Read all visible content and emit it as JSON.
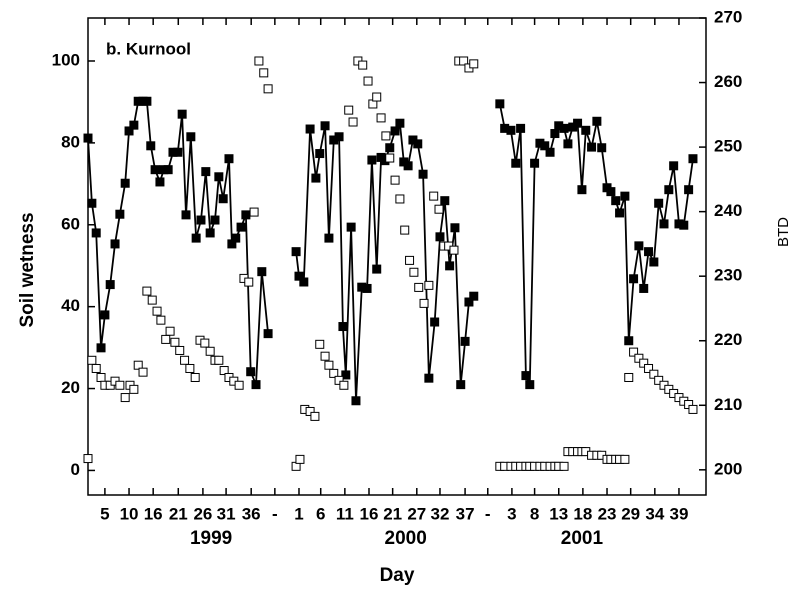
{
  "chart_data": {
    "type": "scatter",
    "annotation": "b. Kurnool",
    "xlabel": "Day",
    "ylabel": "Soil wetness",
    "y2label": "BTD",
    "xlim": [
      0,
      128
    ],
    "ylim": [
      -6,
      110.5
    ],
    "y2lim": [
      196.1,
      270
    ],
    "yticks": [
      0,
      20,
      40,
      60,
      80,
      100
    ],
    "y2ticks": [
      200,
      210,
      220,
      230,
      240,
      250,
      260,
      270
    ],
    "xticks": [
      {
        "value": 3.5,
        "label": "5"
      },
      {
        "value": 8.5,
        "label": "10"
      },
      {
        "value": 13.5,
        "label": "16"
      },
      {
        "value": 18.7,
        "label": "21"
      },
      {
        "value": 23.8,
        "label": "26"
      },
      {
        "value": 28.6,
        "label": "31"
      },
      {
        "value": 33.8,
        "label": "36"
      },
      {
        "value": 38.7,
        "label": "-"
      },
      {
        "value": 43.7,
        "label": "1"
      },
      {
        "value": 48.2,
        "label": "6"
      },
      {
        "value": 53.2,
        "label": "11"
      },
      {
        "value": 58.2,
        "label": "16"
      },
      {
        "value": 63.1,
        "label": "21"
      },
      {
        "value": 68.1,
        "label": "27"
      },
      {
        "value": 72.9,
        "label": "32"
      },
      {
        "value": 78.1,
        "label": "37"
      },
      {
        "value": 82.8,
        "label": "-"
      },
      {
        "value": 87.8,
        "label": "3"
      },
      {
        "value": 92.5,
        "label": "8"
      },
      {
        "value": 97.5,
        "label": "13"
      },
      {
        "value": 102.5,
        "label": "18"
      },
      {
        "value": 107.5,
        "label": "23"
      },
      {
        "value": 112.4,
        "label": "29"
      },
      {
        "value": 117.4,
        "label": "34"
      },
      {
        "value": 122.4,
        "label": "39"
      }
    ],
    "groups": [
      {
        "label": "1999",
        "x": 25.5
      },
      {
        "label": "2000",
        "x": 65.8
      },
      {
        "label": "2001",
        "x": 102.3
      }
    ],
    "series": [
      {
        "axis": "y2",
        "marker": "filled",
        "line": true,
        "color": "#000000",
        "x": [
          0,
          0.8,
          1.7,
          2.7,
          3.5,
          4.6,
          5.6,
          6.6,
          7.7,
          8.5,
          9.5,
          10.4,
          11.4,
          12.2,
          13,
          13.9,
          14.9,
          15.7,
          16.6,
          17.6,
          18.6,
          19.5,
          20.3,
          21.3,
          22.4,
          23.4,
          24.4,
          25.3,
          26.3,
          27.1,
          28,
          29.2,
          29.8,
          30.6,
          31.7,
          32.7,
          33.7,
          34.8,
          36,
          37.3,
          null,
          43.1,
          43.7,
          44.7,
          46,
          47.2,
          48,
          49.1,
          49.9,
          50.9,
          52,
          52.8,
          53.4,
          54.5,
          55.5,
          56.7,
          57.8,
          58.8,
          59.8,
          60.7,
          61.5,
          62.5,
          63.6,
          64.6,
          65.4,
          66.3,
          67.3,
          68.3,
          69.4,
          70.6,
          71.8,
          72.9,
          73.9,
          74.9,
          76,
          77.2,
          78.1,
          78.9,
          79.9,
          null,
          85.3,
          86.3,
          87.6,
          88.6,
          89.6,
          90.7,
          91.5,
          92.5,
          93.6,
          94.6,
          95.7,
          96.7,
          97.5,
          98.6,
          99.4,
          100.4,
          101.4,
          102.3,
          103.1,
          104.3,
          105.4,
          106.4,
          107.5,
          108.3,
          109.3,
          110.1,
          111.2,
          112,
          113,
          114.1,
          115.1,
          116.1,
          117.2,
          118.2,
          119.3,
          120.3,
          121.3,
          122.4,
          123.4,
          124.4,
          125.3
        ],
        "values": [
          251.4,
          241.3,
          236.7,
          218.9,
          224,
          228.7,
          235,
          239.6,
          244.4,
          252.5,
          253.4,
          257.1,
          257.1,
          257.1,
          250.2,
          246.5,
          244.6,
          246.5,
          246.5,
          249.2,
          249.2,
          255.1,
          239.5,
          251.6,
          235.9,
          238.7,
          246.2,
          236.7,
          238.7,
          245.4,
          242,
          248.2,
          235,
          235.9,
          237.6,
          239.5,
          215.2,
          213.2,
          230.7,
          221.1,
          null,
          233.8,
          230,
          229.1,
          252.8,
          245.2,
          249,
          253.3,
          235.9,
          251.1,
          251.6,
          222.2,
          214.7,
          237.6,
          210.7,
          228.3,
          228.1,
          248,
          231.1,
          248.4,
          247.9,
          249.9,
          252.5,
          253.7,
          247.7,
          247.1,
          251.1,
          250.5,
          245.8,
          214.2,
          222.9,
          236.1,
          241.7,
          231.6,
          237.5,
          213.2,
          219.9,
          226,
          226.9,
          null,
          256.7,
          252.9,
          252.6,
          247.5,
          252.9,
          214.6,
          213.2,
          247.5,
          250.6,
          250.2,
          249.2,
          252.1,
          253.3,
          252.9,
          250.5,
          253.1,
          253.7,
          243.4,
          252.6,
          250,
          254,
          249.9,
          243.7,
          243.1,
          241.7,
          239.8,
          242.4,
          220,
          229.6,
          234.7,
          228.1,
          233.8,
          232.2,
          241.3,
          238.1,
          243.4,
          247.1,
          238.1,
          237.9,
          243.4,
          248.2
        ]
      },
      {
        "axis": "y",
        "marker": "open",
        "line": false,
        "color": "#000000",
        "x": [
          0,
          0.8,
          1.7,
          2.7,
          3.5,
          4.6,
          5.6,
          6.6,
          7.7,
          8.7,
          9.5,
          10.4,
          11.4,
          12.2,
          13.3,
          14.3,
          15.1,
          16.1,
          17,
          18,
          19,
          20,
          21.1,
          22.2,
          23.2,
          24.2,
          25.3,
          26.3,
          27.1,
          28.2,
          29.2,
          30.2,
          31.3,
          32.3,
          33.3,
          34.4,
          35.4,
          36.4,
          37.3,
          43.1,
          43.9,
          44.9,
          46,
          47,
          48,
          49.1,
          49.9,
          50.9,
          52,
          53,
          54,
          54.9,
          55.9,
          56.9,
          58,
          59,
          59.8,
          60.7,
          61.7,
          62.5,
          63.6,
          64.6,
          65.6,
          66.6,
          67.5,
          68.5,
          69.6,
          70.6,
          71.6,
          72.7,
          73.7,
          74.7,
          75.8,
          76.8,
          77.8,
          78.9,
          79.9,
          85.3,
          86.3,
          87.6,
          88.6,
          89.6,
          90.7,
          91.5,
          92.5,
          93.6,
          94.6,
          95.7,
          96.7,
          97.5,
          98.6,
          99.4,
          100.4,
          101.4,
          102.3,
          103.1,
          104.3,
          105.4,
          106.4,
          107.5,
          108.3,
          109.3,
          110.1,
          111.2,
          112,
          113,
          114.1,
          115.1,
          116.1,
          117.2,
          118.2,
          119.3,
          120.3,
          121.3,
          122.4,
          123.4,
          124.4,
          125.3
        ],
        "values": [
          2.9,
          26.9,
          24.9,
          22.7,
          20.8,
          20.8,
          21.8,
          20.8,
          17.8,
          20.8,
          19.8,
          25.7,
          24,
          43.8,
          41.6,
          38.9,
          36.7,
          32,
          34,
          31.3,
          29.3,
          26.9,
          24.9,
          22.7,
          31.8,
          31.1,
          29.1,
          26.9,
          26.9,
          24.4,
          22.7,
          21.8,
          20.8,
          46.9,
          46,
          63.1,
          100,
          97.1,
          93.2,
          1,
          2.7,
          14.9,
          14.4,
          13.2,
          30.8,
          27.9,
          25.7,
          23.7,
          22,
          20.8,
          88,
          85.1,
          100,
          99,
          95.1,
          89.5,
          91.2,
          86.1,
          81.7,
          76.3,
          70.9,
          66.3,
          58.7,
          51.3,
          48.4,
          44.7,
          40.8,
          45.2,
          67,
          63.8,
          54.8,
          54.8,
          53.8,
          100,
          100,
          98.3,
          99.3,
          1,
          1,
          1,
          1,
          1,
          1,
          1,
          1,
          1,
          1,
          1,
          1,
          1,
          1,
          4.6,
          4.6,
          4.6,
          4.6,
          4.6,
          3.7,
          3.7,
          3.7,
          2.7,
          2.7,
          2.7,
          2.7,
          2.7,
          22.7,
          28.9,
          27.4,
          26.2,
          24.9,
          23.5,
          22,
          20.8,
          19.8,
          18.8,
          17.8,
          16.9,
          16.1,
          14.9
        ]
      }
    ]
  }
}
